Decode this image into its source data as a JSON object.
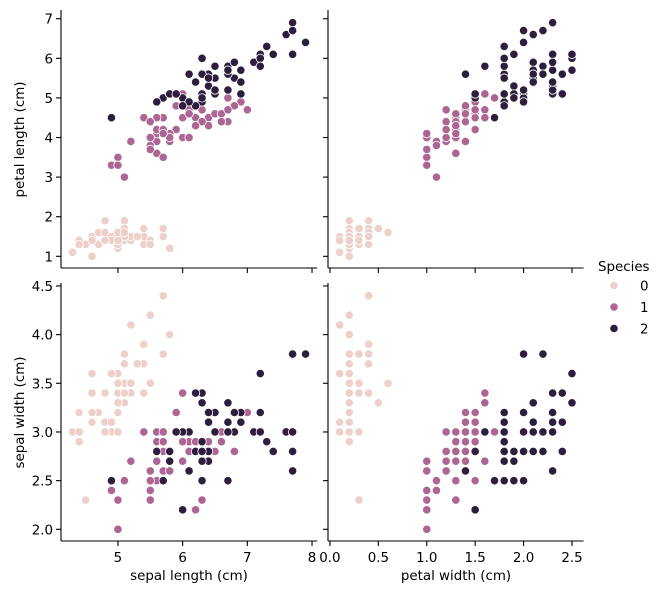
{
  "chart_data": {
    "type": "scatter",
    "kind": "pairplot",
    "title": "",
    "x_axes": {
      "sepal_length": {
        "label": "sepal length (cm)",
        "range": [
          4.12,
          8.08
        ],
        "ticks": [
          "5",
          "6",
          "7",
          "8"
        ]
      },
      "petal_width": {
        "label": "petal width (cm)",
        "range": [
          -0.02,
          2.62
        ],
        "ticks": [
          "0.0",
          "0.5",
          "1.0",
          "1.5",
          "2.0",
          "2.5"
        ]
      }
    },
    "y_axes": {
      "petal_length": {
        "label": "petal length (cm)",
        "range": [
          0.705,
          7.195
        ],
        "ticks": [
          "1",
          "2",
          "3",
          "4",
          "5",
          "6",
          "7"
        ]
      },
      "sepal_width": {
        "label": "sepal width (cm)",
        "range": [
          1.88,
          4.52
        ],
        "ticks": [
          "2.0",
          "2.5",
          "3.0",
          "3.5",
          "4.0",
          "4.5"
        ]
      }
    },
    "grid": false,
    "legend": {
      "title": "Species",
      "placement": "right"
    },
    "series": [
      {
        "name": "0",
        "color": "#ecd0c9",
        "sepal_length": [
          5.1,
          4.9,
          4.7,
          4.6,
          5.0,
          5.4,
          4.6,
          5.0,
          4.4,
          4.9,
          5.4,
          4.8,
          4.8,
          4.3,
          5.8,
          5.7,
          5.4,
          5.1,
          5.7,
          5.1,
          5.4,
          5.1,
          4.6,
          5.1,
          4.8,
          5.0,
          5.0,
          5.2,
          5.2,
          4.7,
          4.8,
          5.4,
          5.2,
          5.5,
          4.9,
          5.0,
          5.5,
          4.9,
          4.4,
          5.1,
          5.0,
          4.5,
          4.4,
          5.0,
          5.1,
          4.8,
          5.1,
          4.6,
          5.3,
          5.0
        ],
        "sepal_width": [
          3.5,
          3.0,
          3.2,
          3.1,
          3.6,
          3.9,
          3.4,
          3.4,
          2.9,
          3.1,
          3.7,
          3.4,
          3.0,
          3.0,
          4.0,
          4.4,
          3.9,
          3.5,
          3.8,
          3.8,
          3.4,
          3.7,
          3.6,
          3.3,
          3.4,
          3.0,
          3.4,
          3.5,
          3.4,
          3.2,
          3.1,
          3.4,
          4.1,
          4.2,
          3.1,
          3.2,
          3.5,
          3.6,
          3.0,
          3.4,
          3.5,
          2.3,
          3.2,
          3.5,
          3.8,
          3.0,
          3.8,
          3.2,
          3.7,
          3.3
        ],
        "petal_length": [
          1.4,
          1.4,
          1.3,
          1.5,
          1.4,
          1.7,
          1.4,
          1.5,
          1.4,
          1.5,
          1.5,
          1.6,
          1.4,
          1.1,
          1.2,
          1.5,
          1.3,
          1.4,
          1.7,
          1.5,
          1.7,
          1.5,
          1.0,
          1.7,
          1.9,
          1.6,
          1.6,
          1.5,
          1.4,
          1.6,
          1.6,
          1.5,
          1.5,
          1.4,
          1.5,
          1.2,
          1.3,
          1.4,
          1.3,
          1.5,
          1.3,
          1.3,
          1.3,
          1.6,
          1.9,
          1.4,
          1.6,
          1.4,
          1.5,
          1.4
        ],
        "petal_width": [
          0.2,
          0.2,
          0.2,
          0.2,
          0.2,
          0.4,
          0.3,
          0.2,
          0.2,
          0.1,
          0.2,
          0.2,
          0.1,
          0.1,
          0.2,
          0.4,
          0.4,
          0.3,
          0.3,
          0.3,
          0.2,
          0.4,
          0.2,
          0.5,
          0.2,
          0.2,
          0.4,
          0.2,
          0.2,
          0.2,
          0.2,
          0.4,
          0.1,
          0.2,
          0.2,
          0.2,
          0.2,
          0.1,
          0.2,
          0.2,
          0.3,
          0.3,
          0.2,
          0.6,
          0.4,
          0.3,
          0.2,
          0.2,
          0.2,
          0.2
        ]
      },
      {
        "name": "1",
        "color": "#ad6693",
        "sepal_length": [
          7.0,
          6.4,
          6.9,
          5.5,
          6.5,
          5.7,
          6.3,
          4.9,
          6.6,
          5.2,
          5.0,
          5.9,
          6.0,
          6.1,
          5.6,
          6.7,
          5.6,
          5.8,
          6.2,
          5.6,
          5.9,
          6.1,
          6.3,
          6.1,
          6.4,
          6.6,
          6.8,
          6.7,
          6.0,
          5.7,
          5.5,
          5.5,
          5.8,
          6.0,
          5.4,
          6.0,
          6.7,
          6.3,
          5.6,
          5.5,
          5.5,
          6.1,
          5.8,
          5.0,
          5.6,
          5.7,
          5.7,
          6.2,
          5.1,
          5.7
        ],
        "sepal_width": [
          3.2,
          3.2,
          3.1,
          2.3,
          2.8,
          2.8,
          3.3,
          2.4,
          2.9,
          2.7,
          2.0,
          3.0,
          2.2,
          2.9,
          2.9,
          3.1,
          3.0,
          2.7,
          2.2,
          2.5,
          3.2,
          2.8,
          2.5,
          2.8,
          2.9,
          3.0,
          2.8,
          3.0,
          2.9,
          2.6,
          2.4,
          2.4,
          2.7,
          2.7,
          3.0,
          3.4,
          3.1,
          2.3,
          3.0,
          2.5,
          2.6,
          3.0,
          2.6,
          2.3,
          2.7,
          3.0,
          2.9,
          2.9,
          2.5,
          2.8
        ],
        "petal_length": [
          4.7,
          4.5,
          4.9,
          4.0,
          4.6,
          4.5,
          4.7,
          3.3,
          4.6,
          3.9,
          3.5,
          4.2,
          4.0,
          4.7,
          3.6,
          4.4,
          4.5,
          4.1,
          4.5,
          3.9,
          4.8,
          4.0,
          4.9,
          4.7,
          4.3,
          4.4,
          4.8,
          5.0,
          4.5,
          3.5,
          3.8,
          3.7,
          3.9,
          5.1,
          4.5,
          4.5,
          4.7,
          4.4,
          4.1,
          4.0,
          4.4,
          4.6,
          4.0,
          3.3,
          4.2,
          4.2,
          4.2,
          4.3,
          3.0,
          4.1
        ],
        "petal_width": [
          1.4,
          1.5,
          1.5,
          1.3,
          1.5,
          1.3,
          1.6,
          1.0,
          1.3,
          1.4,
          1.0,
          1.5,
          1.0,
          1.4,
          1.3,
          1.4,
          1.5,
          1.0,
          1.5,
          1.1,
          1.8,
          1.3,
          1.5,
          1.2,
          1.3,
          1.4,
          1.4,
          1.7,
          1.5,
          1.0,
          1.1,
          1.0,
          1.2,
          1.6,
          1.5,
          1.6,
          1.5,
          1.3,
          1.3,
          1.3,
          1.2,
          1.4,
          1.2,
          1.0,
          1.3,
          1.2,
          1.3,
          1.3,
          1.1,
          1.3
        ]
      },
      {
        "name": "2",
        "color": "#2d1e3e",
        "sepal_length": [
          6.3,
          5.8,
          7.1,
          6.3,
          6.5,
          7.6,
          4.9,
          7.3,
          6.7,
          7.2,
          6.5,
          6.4,
          6.8,
          5.7,
          5.8,
          6.4,
          6.5,
          7.7,
          7.7,
          6.0,
          6.9,
          5.6,
          7.7,
          6.3,
          6.7,
          7.2,
          6.2,
          6.1,
          6.4,
          7.2,
          7.4,
          7.9,
          6.4,
          6.3,
          6.1,
          7.7,
          6.3,
          6.4,
          6.0,
          6.9,
          6.7,
          6.9,
          5.8,
          6.8,
          6.7,
          6.7,
          6.3,
          6.5,
          6.2,
          5.9
        ],
        "sepal_width": [
          3.3,
          2.7,
          3.0,
          2.9,
          3.0,
          3.0,
          2.5,
          2.9,
          2.5,
          3.6,
          3.2,
          2.7,
          3.0,
          2.5,
          2.8,
          3.2,
          3.0,
          3.8,
          2.6,
          2.2,
          3.2,
          2.8,
          2.8,
          2.7,
          3.3,
          3.2,
          2.8,
          3.0,
          2.8,
          3.0,
          2.8,
          3.8,
          2.8,
          2.8,
          2.6,
          3.0,
          3.4,
          3.1,
          3.0,
          3.1,
          3.1,
          3.1,
          2.7,
          3.2,
          3.3,
          3.0,
          2.5,
          3.0,
          3.4,
          3.0
        ],
        "petal_length": [
          6.0,
          5.1,
          5.9,
          5.6,
          5.8,
          6.6,
          4.5,
          6.3,
          5.8,
          6.1,
          5.1,
          5.3,
          5.5,
          5.0,
          5.1,
          5.3,
          5.5,
          6.7,
          6.9,
          5.0,
          5.7,
          4.9,
          6.7,
          4.9,
          5.7,
          6.0,
          4.8,
          4.9,
          5.6,
          5.8,
          6.1,
          6.4,
          5.6,
          5.1,
          5.6,
          6.1,
          5.6,
          5.5,
          4.8,
          5.4,
          5.6,
          5.1,
          5.1,
          5.9,
          5.7,
          5.2,
          5.0,
          5.2,
          5.4,
          5.1
        ],
        "petal_width": [
          2.5,
          1.9,
          2.1,
          1.8,
          2.2,
          2.1,
          1.7,
          1.8,
          1.8,
          2.5,
          2.0,
          1.9,
          2.1,
          2.0,
          2.4,
          2.3,
          1.8,
          2.2,
          2.3,
          1.5,
          2.3,
          2.0,
          2.0,
          1.8,
          2.1,
          1.8,
          1.8,
          1.8,
          2.1,
          1.6,
          1.9,
          2.0,
          2.2,
          1.5,
          1.4,
          2.3,
          2.4,
          1.8,
          1.8,
          2.1,
          2.4,
          2.3,
          1.9,
          2.3,
          2.5,
          2.3,
          1.9,
          2.0,
          2.3,
          1.8
        ]
      }
    ]
  }
}
